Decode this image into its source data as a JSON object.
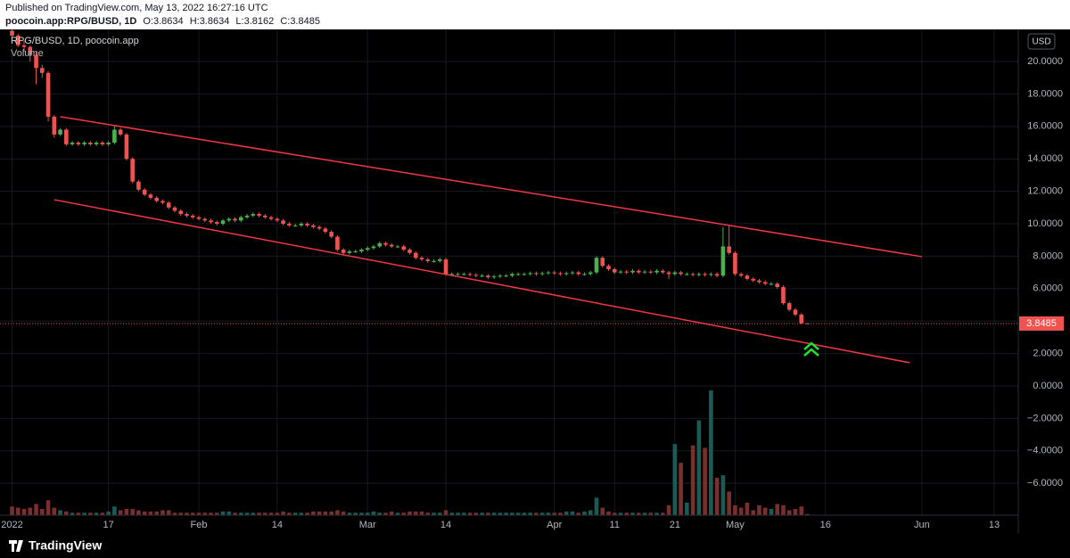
{
  "chart_data": {
    "type": "candlestick",
    "header": "Published on TradingView.com, May 13, 2022 16:27:16 UTC",
    "symbol": "poocoin.app:RPG/BUSD, 1D",
    "ohlc_labels": [
      "O:",
      "H:",
      "L:",
      "C:"
    ],
    "legend": "RPG/BUSD, 1D, poocoin.app",
    "volume_label": "Volume",
    "currency": "USD",
    "brand": "TradingView",
    "x": [
      "2022-01-01",
      "2022-01-02",
      "2022-01-03",
      "2022-01-04",
      "2022-01-05",
      "2022-01-06",
      "2022-01-07",
      "2022-01-08",
      "2022-01-09",
      "2022-01-10",
      "2022-01-11",
      "2022-01-12",
      "2022-01-13",
      "2022-01-14",
      "2022-01-15",
      "2022-01-16",
      "2022-01-17",
      "2022-01-18",
      "2022-01-19",
      "2022-01-20",
      "2022-01-21",
      "2022-01-22",
      "2022-01-23",
      "2022-01-24",
      "2022-01-25",
      "2022-01-26",
      "2022-01-27",
      "2022-01-28",
      "2022-01-29",
      "2022-01-30",
      "2022-01-31",
      "2022-02-01",
      "2022-02-02",
      "2022-02-03",
      "2022-02-04",
      "2022-02-05",
      "2022-02-06",
      "2022-02-07",
      "2022-02-08",
      "2022-02-09",
      "2022-02-10",
      "2022-02-11",
      "2022-02-12",
      "2022-02-13",
      "2022-02-14",
      "2022-02-15",
      "2022-02-16",
      "2022-02-17",
      "2022-02-18",
      "2022-02-19",
      "2022-02-20",
      "2022-02-21",
      "2022-02-22",
      "2022-02-23",
      "2022-02-24",
      "2022-02-25",
      "2022-02-26",
      "2022-02-27",
      "2022-02-28",
      "2022-03-01",
      "2022-03-02",
      "2022-03-03",
      "2022-03-04",
      "2022-03-05",
      "2022-03-06",
      "2022-03-07",
      "2022-03-08",
      "2022-03-09",
      "2022-03-10",
      "2022-03-11",
      "2022-03-12",
      "2022-03-13",
      "2022-03-14",
      "2022-03-15",
      "2022-03-16",
      "2022-03-17",
      "2022-03-18",
      "2022-03-19",
      "2022-03-20",
      "2022-03-21",
      "2022-03-22",
      "2022-03-23",
      "2022-03-24",
      "2022-03-25",
      "2022-03-26",
      "2022-03-27",
      "2022-03-28",
      "2022-03-29",
      "2022-03-30",
      "2022-03-31",
      "2022-04-01",
      "2022-04-02",
      "2022-04-03",
      "2022-04-04",
      "2022-04-05",
      "2022-04-06",
      "2022-04-07",
      "2022-04-08",
      "2022-04-09",
      "2022-04-10",
      "2022-04-11",
      "2022-04-12",
      "2022-04-13",
      "2022-04-14",
      "2022-04-15",
      "2022-04-16",
      "2022-04-17",
      "2022-04-18",
      "2022-04-19",
      "2022-04-20",
      "2022-04-21",
      "2022-04-22",
      "2022-04-23",
      "2022-04-24",
      "2022-04-25",
      "2022-04-26",
      "2022-04-27",
      "2022-04-28",
      "2022-04-29",
      "2022-04-30",
      "2022-05-01",
      "2022-05-02",
      "2022-05-03",
      "2022-05-04",
      "2022-05-05",
      "2022-05-06",
      "2022-05-07",
      "2022-05-08",
      "2022-05-09",
      "2022-05-10",
      "2022-05-11",
      "2022-05-12",
      "2022-05-13"
    ],
    "open": [
      21.9,
      21.6,
      21.0,
      20.9,
      20.4,
      19.6,
      19.3,
      16.6,
      15.5,
      15.8,
      14.9,
      15.0,
      14.9,
      15.0,
      14.9,
      15.0,
      14.9,
      15.0,
      15.8,
      15.5,
      14.0,
      12.6,
      12.1,
      11.8,
      11.6,
      11.4,
      11.3,
      11.0,
      10.8,
      10.6,
      10.5,
      10.4,
      10.3,
      10.2,
      10.1,
      10.0,
      10.2,
      10.3,
      10.2,
      10.4,
      10.5,
      10.6,
      10.5,
      10.4,
      10.3,
      10.2,
      10.0,
      9.9,
      9.9,
      10.0,
      9.9,
      9.8,
      9.7,
      9.5,
      9.2,
      8.4,
      8.2,
      8.3,
      8.3,
      8.4,
      8.5,
      8.6,
      8.8,
      8.7,
      8.6,
      8.6,
      8.4,
      8.2,
      7.9,
      7.8,
      7.7,
      7.7,
      7.8,
      6.9,
      6.9,
      6.9,
      6.9,
      6.85,
      6.8,
      6.8,
      6.7,
      6.75,
      6.8,
      6.8,
      6.9,
      6.9,
      6.9,
      6.95,
      6.9,
      6.95,
      7.0,
      6.95,
      6.9,
      6.95,
      7.0,
      6.9,
      6.9,
      7.0,
      7.9,
      7.4,
      7.2,
      7.0,
      7.05,
      7.0,
      7.1,
      7.0,
      7.05,
      7.0,
      7.1,
      7.0,
      6.9,
      7.0,
      6.9,
      6.9,
      6.85,
      6.9,
      6.85,
      6.9,
      6.8,
      8.6,
      8.2,
      6.9,
      6.8,
      6.6,
      6.5,
      6.4,
      6.3,
      6.3,
      6.1,
      5.1,
      4.7,
      4.4,
      3.8634
    ],
    "high": [
      22.0,
      21.7,
      21.3,
      21.0,
      20.6,
      19.8,
      19.4,
      16.7,
      15.9,
      15.9,
      15.1,
      15.1,
      15.1,
      15.1,
      15.1,
      15.1,
      15.1,
      16.0,
      15.9,
      15.6,
      14.1,
      12.7,
      12.2,
      11.9,
      11.7,
      11.5,
      11.4,
      11.1,
      10.9,
      10.7,
      10.6,
      10.5,
      10.4,
      10.3,
      10.2,
      10.3,
      10.4,
      10.4,
      10.5,
      10.6,
      10.7,
      10.7,
      10.6,
      10.5,
      10.4,
      10.3,
      10.1,
      10.0,
      10.1,
      10.1,
      10.0,
      9.9,
      9.8,
      9.6,
      9.3,
      8.5,
      8.4,
      8.4,
      8.5,
      8.6,
      8.7,
      8.9,
      8.9,
      8.8,
      8.7,
      8.7,
      8.5,
      8.3,
      8.0,
      7.9,
      7.8,
      7.9,
      7.9,
      7.0,
      7.0,
      7.0,
      7.0,
      6.95,
      6.9,
      6.9,
      6.85,
      6.9,
      6.9,
      7.0,
      7.0,
      7.0,
      7.05,
      7.05,
      7.05,
      7.1,
      7.1,
      7.05,
      7.05,
      7.1,
      7.1,
      7.0,
      7.1,
      8.0,
      8.0,
      7.5,
      7.3,
      7.15,
      7.15,
      7.2,
      7.2,
      7.15,
      7.15,
      7.2,
      7.2,
      7.1,
      7.1,
      7.1,
      7.0,
      7.0,
      7.0,
      7.0,
      7.0,
      7.0,
      9.8,
      9.9,
      8.3,
      7.0,
      6.9,
      6.7,
      6.6,
      6.5,
      6.4,
      6.4,
      6.2,
      5.2,
      4.8,
      4.5,
      3.8634
    ],
    "low": [
      21.5,
      20.9,
      20.6,
      20.0,
      18.6,
      19.0,
      16.3,
      15.3,
      15.4,
      14.8,
      14.8,
      14.8,
      14.8,
      14.8,
      14.8,
      14.8,
      14.8,
      14.9,
      15.4,
      13.9,
      12.5,
      12.0,
      11.7,
      11.5,
      11.3,
      11.2,
      10.9,
      10.7,
      10.5,
      10.4,
      10.3,
      10.2,
      10.1,
      10.0,
      9.9,
      9.9,
      10.1,
      10.1,
      10.1,
      10.3,
      10.4,
      10.4,
      10.3,
      10.2,
      10.1,
      9.9,
      9.8,
      9.8,
      9.8,
      9.8,
      9.7,
      9.6,
      9.4,
      9.1,
      8.3,
      8.1,
      8.1,
      8.2,
      8.2,
      8.3,
      8.4,
      8.5,
      8.6,
      8.5,
      8.5,
      8.3,
      8.1,
      7.8,
      7.7,
      7.6,
      7.6,
      7.6,
      6.8,
      6.8,
      6.8,
      6.8,
      6.75,
      6.7,
      6.7,
      6.6,
      6.6,
      6.65,
      6.7,
      6.7,
      6.8,
      6.8,
      6.8,
      6.8,
      6.8,
      6.85,
      6.85,
      6.8,
      6.8,
      6.85,
      6.8,
      6.8,
      6.8,
      6.9,
      7.3,
      7.1,
      6.9,
      6.9,
      6.9,
      6.9,
      6.9,
      6.9,
      6.9,
      6.9,
      6.9,
      6.6,
      6.8,
      6.8,
      6.8,
      6.75,
      6.75,
      6.75,
      6.75,
      6.7,
      6.7,
      8.1,
      6.8,
      6.7,
      6.5,
      6.4,
      6.3,
      6.2,
      6.2,
      6.0,
      5.0,
      4.6,
      4.3,
      3.8,
      3.8162
    ],
    "close": [
      21.6,
      21.0,
      20.9,
      20.4,
      19.6,
      19.3,
      16.6,
      15.5,
      15.8,
      14.9,
      15.0,
      14.9,
      15.0,
      14.9,
      15.0,
      14.9,
      15.0,
      15.8,
      15.5,
      14.0,
      12.6,
      12.1,
      11.8,
      11.6,
      11.4,
      11.3,
      11.0,
      10.8,
      10.6,
      10.5,
      10.4,
      10.3,
      10.2,
      10.1,
      10.0,
      10.2,
      10.3,
      10.2,
      10.4,
      10.5,
      10.6,
      10.5,
      10.4,
      10.3,
      10.2,
      10.0,
      9.9,
      9.9,
      10.0,
      9.9,
      9.8,
      9.7,
      9.5,
      9.2,
      8.4,
      8.2,
      8.3,
      8.3,
      8.4,
      8.5,
      8.6,
      8.8,
      8.7,
      8.6,
      8.6,
      8.4,
      8.2,
      7.9,
      7.8,
      7.7,
      7.7,
      7.8,
      6.9,
      6.9,
      6.9,
      6.9,
      6.85,
      6.8,
      6.8,
      6.7,
      6.75,
      6.8,
      6.8,
      6.9,
      6.9,
      6.9,
      6.95,
      6.9,
      6.95,
      7.0,
      6.95,
      6.9,
      6.95,
      7.0,
      6.9,
      6.9,
      7.0,
      7.9,
      7.4,
      7.2,
      7.0,
      7.05,
      7.0,
      7.1,
      7.0,
      7.05,
      7.0,
      7.1,
      7.0,
      6.9,
      7.0,
      6.9,
      6.9,
      6.85,
      6.9,
      6.85,
      6.9,
      6.8,
      8.6,
      8.2,
      6.9,
      6.8,
      6.6,
      6.5,
      6.4,
      6.3,
      6.3,
      6.1,
      5.1,
      4.7,
      4.4,
      3.87,
      3.8485
    ],
    "volume": [
      7,
      6,
      5,
      6,
      9,
      5,
      12,
      6,
      4,
      3,
      2,
      2,
      2,
      2,
      2,
      2,
      3,
      7,
      4,
      5,
      5,
      4,
      3,
      3,
      3,
      4,
      4,
      2,
      2,
      2,
      2,
      2,
      2,
      2,
      2,
      3,
      3,
      2,
      2,
      2,
      2,
      2,
      2,
      2,
      2,
      3,
      2,
      2,
      2,
      2,
      3,
      3,
      3,
      3,
      4,
      3,
      2,
      2,
      2,
      2,
      3,
      2,
      2,
      3,
      2,
      2,
      3,
      3,
      3,
      2,
      2,
      2,
      4,
      2,
      2,
      2,
      2,
      2,
      2,
      2,
      2,
      2,
      2,
      2,
      2,
      2,
      2,
      2,
      2,
      2,
      2,
      2,
      3,
      3,
      2,
      3,
      4,
      14,
      6,
      3,
      2,
      2,
      2,
      2,
      2,
      2,
      2,
      2,
      2,
      8,
      57,
      42,
      10,
      56,
      76,
      54,
      100,
      30,
      32,
      19,
      8,
      6,
      10,
      4,
      8,
      6,
      5,
      9,
      8,
      4,
      5,
      7,
      1
    ],
    "volume_ylim": [
      0,
      100
    ],
    "xlim": [
      "2021-12-30",
      "2022-06-17"
    ],
    "xticks": [
      {
        "value": "2022-01-01",
        "label": "2022"
      },
      {
        "value": "2022-01-17",
        "label": "17"
      },
      {
        "value": "2022-02-01",
        "label": "Feb"
      },
      {
        "value": "2022-02-14",
        "label": "14"
      },
      {
        "value": "2022-03-01",
        "label": "Mar"
      },
      {
        "value": "2022-03-14",
        "label": "14"
      },
      {
        "value": "2022-04-01",
        "label": "Apr"
      },
      {
        "value": "2022-04-11",
        "label": "11"
      },
      {
        "value": "2022-04-21",
        "label": "21"
      },
      {
        "value": "2022-05-01",
        "label": "May"
      },
      {
        "value": "2022-05-16",
        "label": "16"
      },
      {
        "value": "2022-06-01",
        "label": "Jun"
      },
      {
        "value": "2022-06-13",
        "label": "13"
      }
    ],
    "ylim": [
      -7.97,
      21.98
    ],
    "yticks": [
      {
        "value": -6,
        "label": "−6.0000"
      },
      {
        "value": -4,
        "label": "−4.0000"
      },
      {
        "value": -2,
        "label": "−2.0000"
      },
      {
        "value": 0,
        "label": "0.0000"
      },
      {
        "value": 2,
        "label": "2.0000"
      },
      {
        "value": 4,
        "label": "4.0000"
      },
      {
        "value": 6,
        "label": "6.0000"
      },
      {
        "value": 8,
        "label": "8.0000"
      },
      {
        "value": 10,
        "label": "10.0000"
      },
      {
        "value": 12,
        "label": "12.0000"
      },
      {
        "value": 14,
        "label": "14.0000"
      },
      {
        "value": 16,
        "label": "16.0000"
      },
      {
        "value": 18,
        "label": "18.0000"
      },
      {
        "value": 20,
        "label": "20.0000"
      }
    ],
    "up_color": "#4caf50",
    "down_color": "#ef5350",
    "volume_up_color": "#1a5c55",
    "volume_down_color": "#7a2e2e",
    "trendline_color": "#f23645",
    "trendlines": [
      {
        "start": {
          "x": "2022-01-09",
          "y": 16.6
        },
        "end": {
          "x": "2022-06-01",
          "y": 7.97
        }
      },
      {
        "start": {
          "x": "2022-01-08",
          "y": 11.48
        },
        "end": {
          "x": "2022-05-30",
          "y": 1.43
        }
      }
    ],
    "grid": true
  }
}
